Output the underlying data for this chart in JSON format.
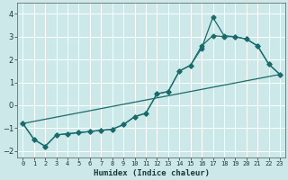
{
  "xlabel": "Humidex (Indice chaleur)",
  "background_color": "#cde8e8",
  "grid_color": "#b0d8d8",
  "line_color": "#1a6b6b",
  "xlim": [
    -0.5,
    23.5
  ],
  "ylim": [
    -2.3,
    4.5
  ],
  "yticks": [
    -2,
    -1,
    0,
    1,
    2,
    3,
    4
  ],
  "xticks": [
    0,
    1,
    2,
    3,
    4,
    5,
    6,
    7,
    8,
    9,
    10,
    11,
    12,
    13,
    14,
    15,
    16,
    17,
    18,
    19,
    20,
    21,
    22,
    23
  ],
  "line1_x": [
    0,
    1,
    2,
    3,
    4,
    5,
    6,
    7,
    8,
    9,
    10,
    11,
    12,
    13,
    14,
    15,
    16,
    17,
    18,
    19,
    20,
    21,
    22,
    23
  ],
  "line1_y": [
    -0.8,
    -1.5,
    -1.8,
    -1.3,
    -1.25,
    -1.2,
    -1.15,
    -1.1,
    -1.05,
    -0.85,
    -0.5,
    -0.35,
    0.5,
    0.6,
    1.5,
    1.75,
    2.5,
    3.85,
    3.05,
    3.0,
    2.9,
    2.6,
    1.8,
    1.35
  ],
  "line2_x": [
    0,
    23
  ],
  "line2_y": [
    -0.8,
    1.35
  ],
  "line3_x": [
    0,
    1,
    2,
    3,
    4,
    5,
    6,
    7,
    8,
    9,
    10,
    11,
    12,
    13,
    14,
    15,
    16,
    17,
    18,
    19,
    20,
    21,
    22,
    23
  ],
  "line3_y": [
    -0.8,
    -1.5,
    -1.8,
    -1.3,
    -1.25,
    -1.2,
    -1.15,
    -1.1,
    -1.05,
    -0.85,
    -0.5,
    -0.35,
    0.5,
    0.6,
    1.5,
    1.75,
    2.6,
    3.05,
    3.0,
    3.0,
    2.9,
    2.6,
    1.8,
    1.35
  ]
}
